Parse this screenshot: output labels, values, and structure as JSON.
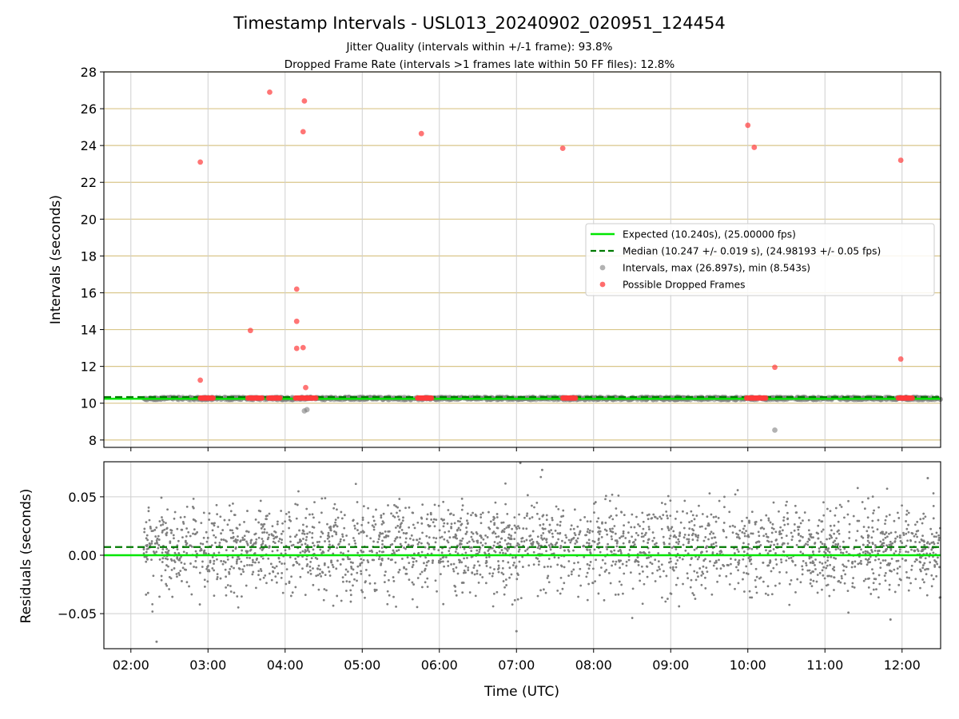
{
  "chart_data": [
    {
      "type": "scatter",
      "title": "Timestamp Intervals - USL013_20240902_020951_124454",
      "subtitle_lines": [
        "Jitter Quality (intervals within +/-1 frame): 93.8%",
        "Dropped Frame Rate (intervals >1 frames late within 50 FF files): 12.8%"
      ],
      "ylabel": "Intervals (seconds)",
      "xlim": [
        "01:39",
        "12:30"
      ],
      "ylim": [
        7.6,
        28
      ],
      "yticks": [
        "8",
        "10",
        "12",
        "14",
        "16",
        "18",
        "20",
        "22",
        "24",
        "26",
        "28"
      ],
      "ytick_values": [
        8,
        10,
        12,
        14,
        16,
        18,
        20,
        22,
        24,
        26,
        28
      ],
      "xticks": [
        "02:00",
        "03:00",
        "04:00",
        "05:00",
        "06:00",
        "07:00",
        "08:00",
        "09:00",
        "10:00",
        "11:00",
        "12:00"
      ],
      "grid": "on",
      "legend_position": "center-right",
      "legend": [
        "Expected (10.240s), (25.00000 fps)",
        "Median (10.247 +/- 0.019 s), (24.98193 +/- 0.05 fps)",
        "Intervals, max (26.897s), min (8.543s)",
        "Possible Dropped Frames"
      ],
      "expected_interval": 10.24,
      "median_interval": 10.247,
      "intervals_band": {
        "x_start": "02:10",
        "x_end": "12:30",
        "y_min": 10.19,
        "y_max": 10.33
      },
      "other_intervals": [
        {
          "x": "04:15",
          "y": 9.58
        },
        {
          "x": "04:17",
          "y": 9.65
        },
        {
          "x": "10:21",
          "y": 8.54
        }
      ],
      "dropped_frame_clusters": [
        {
          "x_start": "02:54",
          "x_end": "03:04",
          "y": 10.28
        },
        {
          "x_start": "03:31",
          "x_end": "03:42",
          "y": 10.28
        },
        {
          "x_start": "03:47",
          "x_end": "03:56",
          "y": 10.28
        },
        {
          "x_start": "04:08",
          "x_end": "04:24",
          "y": 10.28
        },
        {
          "x_start": "05:43",
          "x_end": "05:54",
          "y": 10.28
        },
        {
          "x_start": "07:36",
          "x_end": "07:46",
          "y": 10.28
        },
        {
          "x_start": "09:59",
          "x_end": "10:14",
          "y": 10.28
        },
        {
          "x_start": "11:57",
          "x_end": "12:08",
          "y": 10.28
        }
      ],
      "dropped_frames": [
        {
          "x": "02:54",
          "y": 23.1
        },
        {
          "x": "02:54",
          "y": 11.25
        },
        {
          "x": "03:33",
          "y": 13.95
        },
        {
          "x": "03:48",
          "y": 26.9
        },
        {
          "x": "04:09",
          "y": 16.2
        },
        {
          "x": "04:09",
          "y": 14.45
        },
        {
          "x": "04:09",
          "y": 12.98
        },
        {
          "x": "04:14",
          "y": 24.75
        },
        {
          "x": "04:15",
          "y": 26.42
        },
        {
          "x": "04:14",
          "y": 13.02
        },
        {
          "x": "04:16",
          "y": 10.85
        },
        {
          "x": "05:46",
          "y": 24.65
        },
        {
          "x": "07:36",
          "y": 23.85
        },
        {
          "x": "10:00",
          "y": 25.1
        },
        {
          "x": "10:05",
          "y": 23.9
        },
        {
          "x": "10:21",
          "y": 11.95
        },
        {
          "x": "11:59",
          "y": 23.2
        },
        {
          "x": "11:59",
          "y": 12.4
        }
      ]
    },
    {
      "type": "scatter",
      "ylabel": "Residuals (seconds)",
      "xlabel": "Time (UTC)",
      "xlim": [
        "01:39",
        "12:30"
      ],
      "ylim": [
        -0.08,
        0.08
      ],
      "yticks": [
        "−0.05",
        "0.00",
        "0.05"
      ],
      "ytick_values": [
        -0.05,
        0.0,
        0.05
      ],
      "xticks": [
        "02:00",
        "03:00",
        "04:00",
        "05:00",
        "06:00",
        "07:00",
        "08:00",
        "09:00",
        "10:00",
        "11:00",
        "12:00"
      ],
      "grid": "on",
      "expected_residual": 0.0,
      "median_residual": 0.007,
      "residual_points": {
        "x_start": "02:10",
        "x_end": "12:30",
        "center": 0.007,
        "spread": 0.019
      },
      "residual_outliers": [
        {
          "x": "02:20",
          "y": -0.074
        },
        {
          "x": "07:03",
          "y": 0.079
        },
        {
          "x": "07:20",
          "y": 0.073
        },
        {
          "x": "07:00",
          "y": -0.065
        },
        {
          "x": "11:51",
          "y": -0.055
        },
        {
          "x": "12:20",
          "y": 0.066
        }
      ]
    }
  ],
  "colors": {
    "expected": "#00e600",
    "median": "#007a00",
    "intervals": "#7f7f7f",
    "dropped": "#ff3b3b",
    "grid_h": "#d9c68a",
    "grid_v": "#cfcfcf"
  }
}
